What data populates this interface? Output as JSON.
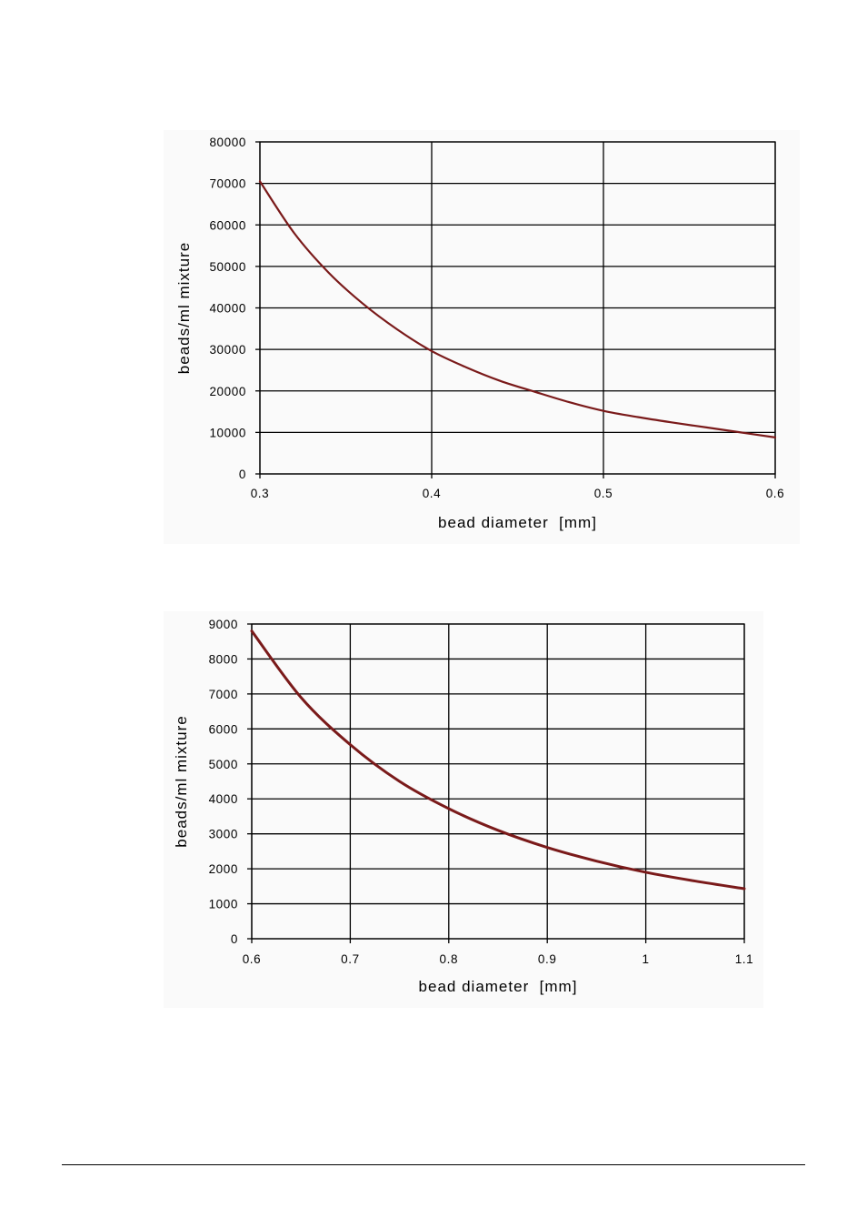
{
  "colors": {
    "series": "#7a1a1a",
    "grid": "#000000",
    "background": "#ffffff",
    "plot_background": "#fafafa"
  },
  "chart_data": [
    {
      "type": "line",
      "title": "",
      "xlabel": "bead diameter  [mm]",
      "ylabel": "beads/ml mixture",
      "xlim": [
        0.3,
        0.6
      ],
      "ylim": [
        0,
        80000
      ],
      "x_ticks": [
        0.3,
        0.4,
        0.5,
        0.6
      ],
      "x_tick_labels": [
        "0.3",
        "0.4",
        "0.5",
        "0.6"
      ],
      "y_ticks": [
        0,
        10000,
        20000,
        30000,
        40000,
        50000,
        60000,
        70000,
        80000
      ],
      "y_tick_labels": [
        "0",
        "10000",
        "20000",
        "30000",
        "40000",
        "50000",
        "60000",
        "70000",
        "80000"
      ],
      "grid": true,
      "legend": "none",
      "series": [
        {
          "x": [
            0.3,
            0.32,
            0.34,
            0.36,
            0.38,
            0.4,
            0.42,
            0.44,
            0.46,
            0.48,
            0.5,
            0.52,
            0.54,
            0.56,
            0.58,
            0.6
          ],
          "values": [
            70500,
            58000,
            48500,
            41000,
            34800,
            29600,
            25700,
            22400,
            19800,
            17300,
            15200,
            13700,
            12400,
            11200,
            10000,
            8800
          ]
        }
      ]
    },
    {
      "type": "line",
      "title": "",
      "xlabel": "bead diameter  [mm]",
      "ylabel": "beads/ml mixture",
      "xlim": [
        0.6,
        1.1
      ],
      "ylim": [
        0,
        9000
      ],
      "x_ticks": [
        0.6,
        0.7,
        0.8,
        0.9,
        1.0,
        1.1
      ],
      "x_tick_labels": [
        "0.6",
        "0.7",
        "0.8",
        "0.9",
        "1",
        "1.1"
      ],
      "y_ticks": [
        0,
        1000,
        2000,
        3000,
        4000,
        5000,
        6000,
        7000,
        8000,
        9000
      ],
      "y_tick_labels": [
        "0",
        "1000",
        "2000",
        "3000",
        "4000",
        "5000",
        "6000",
        "7000",
        "8000",
        "9000"
      ],
      "grid": true,
      "legend": "none",
      "series": [
        {
          "x": [
            0.6,
            0.65,
            0.7,
            0.75,
            0.8,
            0.85,
            0.9,
            0.95,
            1.0,
            1.05,
            1.1
          ],
          "values": [
            8800,
            6900,
            5550,
            4500,
            3720,
            3100,
            2610,
            2220,
            1900,
            1650,
            1430
          ]
        }
      ]
    }
  ]
}
